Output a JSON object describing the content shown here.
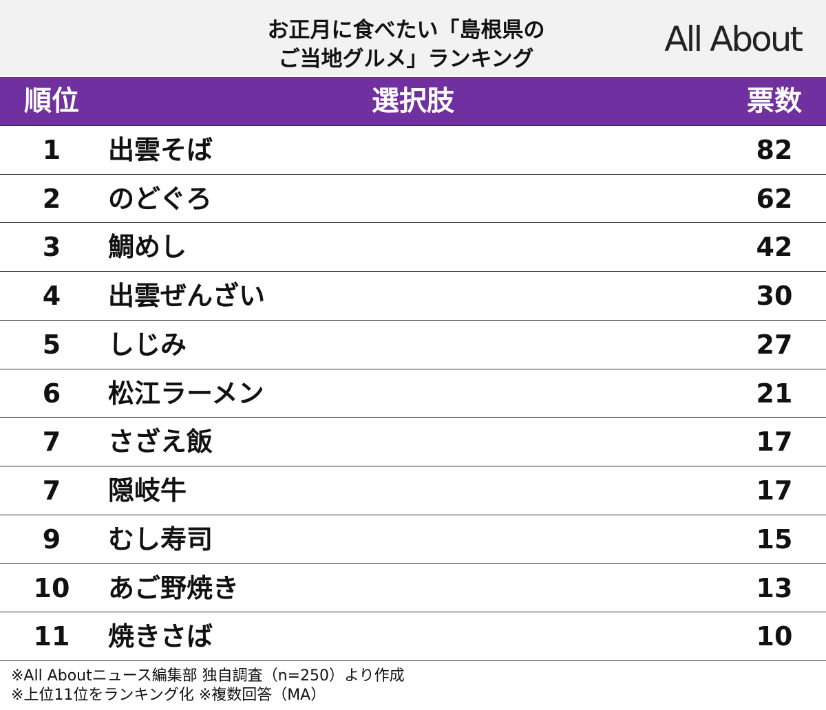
{
  "header": {
    "title": [
      "お正月に食べたい「島根県の",
      "ご当地グルメ」ランキング"
    ],
    "logo": "All About"
  },
  "table": {
    "columns": [
      "順位",
      "選択肢",
      "票数"
    ],
    "rows": [
      [
        1,
        "出雲そば",
        82
      ],
      [
        2,
        "のどぐろ",
        62
      ],
      [
        3,
        "鯛めし",
        42
      ],
      [
        4,
        "出雲ぜんざい",
        30
      ],
      [
        5,
        "しじみ",
        27
      ],
      [
        6,
        "松江ラーメン",
        21
      ],
      [
        7,
        "さざえ飯",
        17
      ],
      [
        7,
        "隠岐牛",
        17
      ],
      [
        9,
        "むし寿司",
        15
      ],
      [
        10,
        "あご野焼き",
        13
      ],
      [
        11,
        "焼きさば",
        10
      ]
    ]
  },
  "footer": [
    "※All Aboutニュース編集部 独自調査（n=250）より作成",
    "※上位11位をランキング化 ※複数回答（MA）"
  ]
}
